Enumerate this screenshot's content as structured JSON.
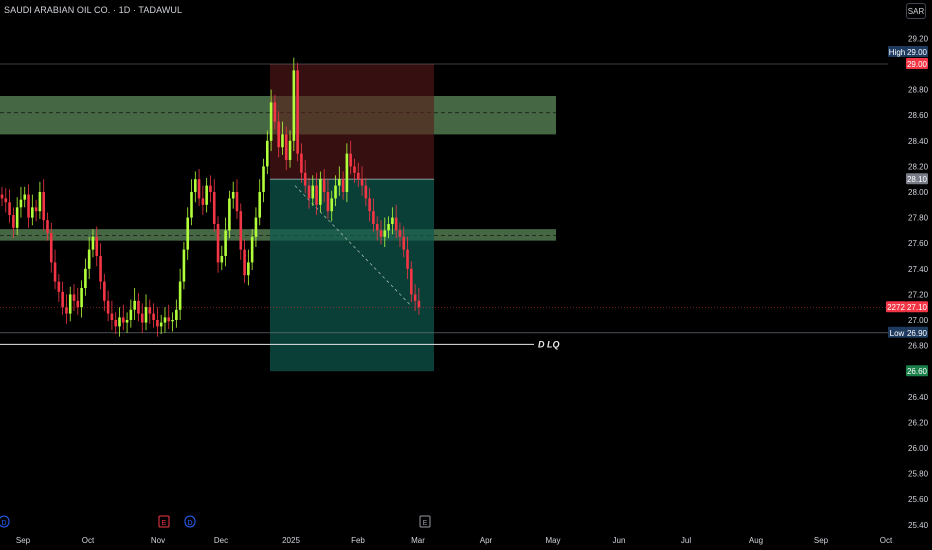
{
  "header": {
    "symbol_title": "SAUDI ARABIAN OIL CO. · 1D · TADAWUL",
    "currency_button": "SAR"
  },
  "colors": {
    "background": "#000000",
    "up": "#b2ff3b",
    "down": "#f23645",
    "zone": "#5c8a5a",
    "stop": "#5a1a1a",
    "target": "#0d5a4e",
    "axis_text": "#d1d4dc"
  },
  "chart_data": {
    "type": "candlestick",
    "ylim": [
      25.33,
      29.26
    ],
    "y_ticks": [
      29.2,
      28.8,
      28.6,
      28.4,
      28.2,
      28.0,
      27.8,
      27.6,
      27.4,
      27.2,
      27.0,
      26.8,
      26.4,
      26.2,
      26.0,
      25.8,
      25.6,
      25.4
    ],
    "x_ticks": [
      "Sep",
      "Oct",
      "Nov",
      "Dec",
      "2025",
      "Feb",
      "Mar",
      "Apr",
      "May",
      "Jun",
      "Jul",
      "Aug",
      "Sep",
      "Oct"
    ],
    "price_labels": {
      "high_label": "High",
      "high_value": "29.00",
      "high_red": "29.00",
      "stop_value": "28.10",
      "countdown": "2272",
      "last_price": "27.10",
      "low_label": "Low",
      "low_value": "26.90",
      "target_value": "26.60"
    },
    "zones": [
      {
        "low": 28.45,
        "high": 28.75,
        "mid": 28.62
      },
      {
        "low": 27.62,
        "high": 27.71,
        "mid": 27.66
      }
    ],
    "position": {
      "entry": 28.1,
      "stop": 29.0,
      "target": 26.6
    },
    "horizontal_lines": [
      {
        "price": 29.0,
        "label": ""
      },
      {
        "price": 26.9,
        "label": ""
      },
      {
        "price": 26.81,
        "label": "D LQ"
      }
    ],
    "last_price": 27.1,
    "event_markers": [
      "D",
      "E",
      "D",
      "E"
    ],
    "candles_close": [
      27.95,
      27.92,
      27.82,
      27.72,
      27.88,
      27.94,
      27.98,
      27.8,
      27.88,
      27.85,
      28.0,
      27.78,
      27.68,
      27.45,
      27.3,
      27.22,
      27.1,
      27.05,
      27.2,
      27.15,
      27.1,
      27.25,
      27.4,
      27.55,
      27.65,
      27.5,
      27.3,
      27.15,
      27.05,
      27.0,
      26.95,
      27.02,
      26.98,
      27.0,
      27.08,
      27.15,
      27.05,
      26.98,
      27.1,
      27.05,
      27.0,
      26.95,
      26.98,
      27.02,
      26.99,
      27.0,
      27.08,
      27.3,
      27.55,
      27.8,
      28.0,
      28.1,
      27.95,
      27.9,
      28.05,
      28.0,
      27.75,
      27.45,
      27.5,
      27.7,
      27.95,
      28.0,
      27.85,
      27.55,
      27.35,
      27.45,
      27.65,
      27.8,
      28.0,
      28.2,
      28.4,
      28.7,
      28.55,
      28.35,
      28.45,
      28.25,
      28.4,
      28.95,
      28.3,
      28.15,
      28.05,
      27.95,
      28.05,
      27.9,
      28.1,
      28.0,
      27.85,
      27.95,
      28.05,
      28.1,
      28.0,
      28.3,
      28.2,
      28.15,
      28.1,
      28.05,
      27.95,
      27.85,
      27.75,
      27.7,
      27.65,
      27.7,
      27.75,
      27.8,
      27.7,
      27.65,
      27.55,
      27.4,
      27.2,
      27.15,
      27.1
    ]
  }
}
